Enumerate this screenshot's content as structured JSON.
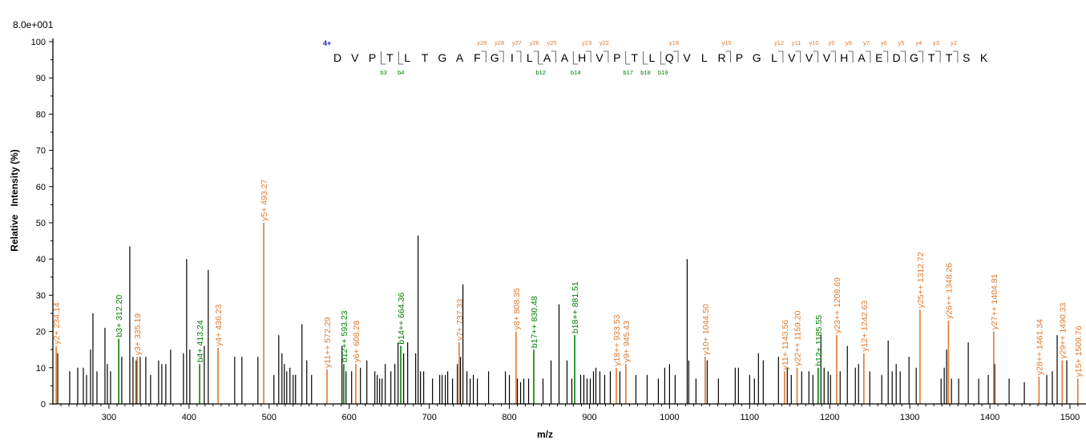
{
  "scale_label": "8.0e+001",
  "colors": {
    "y_ion": "#E07A2E",
    "b_ion": "#008000",
    "unmatched": "#000000",
    "charge": "#1F1FB0",
    "axis": "#000000"
  },
  "chart_data": {
    "type": "bar",
    "title": "",
    "xlabel": "m/z",
    "ylabel": "Relative   Intensity (%)",
    "xlim": [
      230,
      1520
    ],
    "ylim": [
      0,
      100
    ],
    "x_ticks": [
      300,
      400,
      500,
      600,
      700,
      800,
      900,
      1000,
      1100,
      1200,
      1300,
      1400,
      1500
    ],
    "y_ticks": [
      0,
      10,
      20,
      30,
      40,
      50,
      60,
      70,
      80,
      90,
      100
    ],
    "grid": false,
    "peptide": {
      "charge": "4+",
      "sequence": [
        "D",
        "V",
        "P",
        "T",
        "L",
        "T",
        "G",
        "A",
        "F",
        "G",
        "I",
        "L",
        "A",
        "A",
        "H",
        "V",
        "P",
        "T",
        "L",
        "Q",
        "V",
        "L",
        "R",
        "P",
        "G",
        "L",
        "V",
        "V",
        "V",
        "H",
        "A",
        "E",
        "D",
        "G",
        "T",
        "T",
        "S",
        "K"
      ],
      "y_ions": [
        {
          "label": "y29",
          "after": 9
        },
        {
          "label": "y28",
          "after": 10
        },
        {
          "label": "y27",
          "after": 11
        },
        {
          "label": "y26",
          "after": 12
        },
        {
          "label": "y25",
          "after": 13
        },
        {
          "label": "y23",
          "after": 15
        },
        {
          "label": "y22",
          "after": 16
        },
        {
          "label": "y18",
          "after": 20
        },
        {
          "label": "y15",
          "after": 23
        },
        {
          "label": "y12",
          "after": 26
        },
        {
          "label": "y11",
          "after": 27
        },
        {
          "label": "y10",
          "after": 28
        },
        {
          "label": "y9",
          "after": 29
        },
        {
          "label": "y8",
          "after": 30
        },
        {
          "label": "y7",
          "after": 31
        },
        {
          "label": "y6",
          "after": 32
        },
        {
          "label": "y5",
          "after": 33
        },
        {
          "label": "y4",
          "after": 34
        },
        {
          "label": "y3",
          "after": 35
        },
        {
          "label": "y2",
          "after": 36
        }
      ],
      "b_ions": [
        {
          "label": "b3",
          "after": 3
        },
        {
          "label": "b4",
          "after": 4
        },
        {
          "label": "b12",
          "after": 12
        },
        {
          "label": "b14",
          "after": 14
        },
        {
          "label": "b17",
          "after": 17
        },
        {
          "label": "b18",
          "after": 18
        },
        {
          "label": "b19",
          "after": 19
        }
      ]
    },
    "annotated_peaks": [
      {
        "label": "y2+ 234.14",
        "x": 234.14,
        "y": 16,
        "ion": "y"
      },
      {
        "label": "b3+ 312.20",
        "x": 312.2,
        "y": 18,
        "ion": "b"
      },
      {
        "label": "y3+ 335.19",
        "x": 335.19,
        "y": 13,
        "ion": "y"
      },
      {
        "label": "b4+ 413.24",
        "x": 413.24,
        "y": 11,
        "ion": "b"
      },
      {
        "label": "y4+ 436.23",
        "x": 436.23,
        "y": 15.5,
        "ion": "y"
      },
      {
        "label": "y5+ 493.27",
        "x": 493.27,
        "y": 50,
        "ion": "y"
      },
      {
        "label": "y11++ 572.29",
        "x": 572.29,
        "y": 9.5,
        "ion": "y"
      },
      {
        "label": "b12++ 593.23",
        "x": 593.23,
        "y": 11,
        "ion": "b"
      },
      {
        "label": "y6+ 608.28",
        "x": 608.28,
        "y": 11,
        "ion": "y"
      },
      {
        "label": "b14++ 664.36",
        "x": 664.36,
        "y": 16,
        "ion": "b"
      },
      {
        "label": "y7+ 737.33",
        "x": 737.33,
        "y": 17,
        "ion": "y"
      },
      {
        "label": "y8+ 808.35",
        "x": 808.35,
        "y": 20,
        "ion": "y"
      },
      {
        "label": "b17++ 830.48",
        "x": 830.48,
        "y": 15,
        "ion": "b"
      },
      {
        "label": "b18++ 881.51",
        "x": 881.51,
        "y": 19,
        "ion": "b"
      },
      {
        "label": "y18++ 933.53",
        "x": 933.53,
        "y": 10,
        "ion": "y"
      },
      {
        "label": "y9+ 945.43",
        "x": 945.43,
        "y": 11,
        "ion": "y"
      },
      {
        "label": "y10+ 1044.50",
        "x": 1044.5,
        "y": 13,
        "ion": "y"
      },
      {
        "label": "y11+ 1143.56",
        "x": 1143.56,
        "y": 9,
        "ion": "y"
      },
      {
        "label": "y22++ 1159.20",
        "x": 1159.2,
        "y": 10,
        "ion": "y"
      },
      {
        "label": "b12+ 1185.55",
        "x": 1185.55,
        "y": 10,
        "ion": "b"
      },
      {
        "label": "y23++ 1208.69",
        "x": 1208.69,
        "y": 19,
        "ion": "y"
      },
      {
        "label": "y12+ 1242.63",
        "x": 1242.63,
        "y": 14,
        "ion": "y"
      },
      {
        "label": "y25++ 1312.72",
        "x": 1312.72,
        "y": 26,
        "ion": "y"
      },
      {
        "label": "y26++ 1348.26",
        "x": 1348.26,
        "y": 23,
        "ion": "y"
      },
      {
        "label": "y27++ 1404.81",
        "x": 1404.81,
        "y": 20,
        "ion": "y"
      },
      {
        "label": "y28++ 1461.34",
        "x": 1461.34,
        "y": 7.5,
        "ion": "y"
      },
      {
        "label": "y29++ 1490.33",
        "x": 1490.33,
        "y": 12,
        "ion": "y"
      },
      {
        "label": "y15+ 1509.76",
        "x": 1509.76,
        "y": 7,
        "ion": "y"
      }
    ],
    "unmatched_peaks": [
      [
        236,
        14
      ],
      [
        251,
        9
      ],
      [
        261,
        10
      ],
      [
        268,
        10
      ],
      [
        272,
        8
      ],
      [
        277,
        15
      ],
      [
        280,
        25
      ],
      [
        285,
        9
      ],
      [
        295,
        21
      ],
      [
        298,
        11
      ],
      [
        302,
        9
      ],
      [
        316,
        13
      ],
      [
        326,
        43.5
      ],
      [
        330,
        13
      ],
      [
        334,
        12
      ],
      [
        339,
        13
      ],
      [
        346,
        13
      ],
      [
        352,
        8
      ],
      [
        362,
        12
      ],
      [
        366,
        11
      ],
      [
        371,
        11
      ],
      [
        377,
        15
      ],
      [
        393,
        14
      ],
      [
        397,
        40
      ],
      [
        401,
        15
      ],
      [
        419,
        16
      ],
      [
        424,
        37
      ],
      [
        457,
        13
      ],
      [
        466,
        13
      ],
      [
        486,
        13
      ],
      [
        506,
        8
      ],
      [
        512,
        19
      ],
      [
        516,
        14
      ],
      [
        519,
        11
      ],
      [
        522,
        9
      ],
      [
        526,
        10
      ],
      [
        530,
        8
      ],
      [
        533,
        8
      ],
      [
        541,
        22
      ],
      [
        547,
        12
      ],
      [
        553,
        8
      ],
      [
        591,
        16
      ],
      [
        596,
        9
      ],
      [
        603,
        9
      ],
      [
        614,
        10
      ],
      [
        622,
        12
      ],
      [
        632,
        9
      ],
      [
        635,
        8
      ],
      [
        638,
        7
      ],
      [
        641,
        7
      ],
      [
        645,
        11
      ],
      [
        652,
        9
      ],
      [
        657,
        11
      ],
      [
        661,
        17
      ],
      [
        668,
        14
      ],
      [
        673,
        17
      ],
      [
        683,
        14
      ],
      [
        686,
        46.5
      ],
      [
        689,
        9
      ],
      [
        693,
        9
      ],
      [
        704,
        7
      ],
      [
        713,
        8
      ],
      [
        716,
        8
      ],
      [
        720,
        8
      ],
      [
        723,
        9
      ],
      [
        729,
        7
      ],
      [
        735,
        11
      ],
      [
        739,
        13
      ],
      [
        742,
        33
      ],
      [
        747,
        9
      ],
      [
        751,
        7
      ],
      [
        755,
        8
      ],
      [
        760,
        7
      ],
      [
        774,
        9
      ],
      [
        795,
        9
      ],
      [
        800,
        8
      ],
      [
        810,
        7
      ],
      [
        814,
        6
      ],
      [
        818,
        7
      ],
      [
        824,
        7
      ],
      [
        842,
        7
      ],
      [
        852,
        12
      ],
      [
        862,
        27.5
      ],
      [
        872,
        12
      ],
      [
        878,
        7
      ],
      [
        889,
        8
      ],
      [
        893,
        8
      ],
      [
        897,
        7
      ],
      [
        901,
        7
      ],
      [
        905,
        9
      ],
      [
        908,
        10
      ],
      [
        913,
        9
      ],
      [
        919,
        8
      ],
      [
        926,
        9
      ],
      [
        938,
        9
      ],
      [
        958,
        8
      ],
      [
        972,
        8
      ],
      [
        986,
        7
      ],
      [
        994,
        10
      ],
      [
        1000,
        11
      ],
      [
        1007,
        8
      ],
      [
        1022,
        40
      ],
      [
        1024,
        12
      ],
      [
        1033,
        7
      ],
      [
        1047,
        12
      ],
      [
        1061,
        7
      ],
      [
        1082,
        10
      ],
      [
        1086,
        10
      ],
      [
        1100,
        8
      ],
      [
        1106,
        7
      ],
      [
        1111,
        14
      ],
      [
        1117,
        12
      ],
      [
        1136,
        13
      ],
      [
        1147,
        10
      ],
      [
        1152,
        8
      ],
      [
        1165,
        9
      ],
      [
        1174,
        9
      ],
      [
        1179,
        8
      ],
      [
        1189,
        19
      ],
      [
        1193,
        10
      ],
      [
        1198,
        9
      ],
      [
        1201,
        8
      ],
      [
        1213,
        9
      ],
      [
        1222,
        16
      ],
      [
        1232,
        10
      ],
      [
        1236,
        11
      ],
      [
        1250,
        9
      ],
      [
        1265,
        8
      ],
      [
        1273,
        17.5
      ],
      [
        1278,
        9
      ],
      [
        1283,
        11
      ],
      [
        1288,
        9
      ],
      [
        1299,
        13
      ],
      [
        1308,
        10
      ],
      [
        1339,
        7
      ],
      [
        1343,
        10
      ],
      [
        1346,
        15
      ],
      [
        1352,
        7
      ],
      [
        1361,
        7
      ],
      [
        1373,
        17
      ],
      [
        1386,
        7
      ],
      [
        1398,
        8
      ],
      [
        1406,
        11
      ],
      [
        1424,
        7
      ],
      [
        1443,
        6
      ],
      [
        1471,
        8
      ],
      [
        1478,
        9
      ],
      [
        1484,
        19
      ],
      [
        1496,
        12
      ]
    ]
  }
}
